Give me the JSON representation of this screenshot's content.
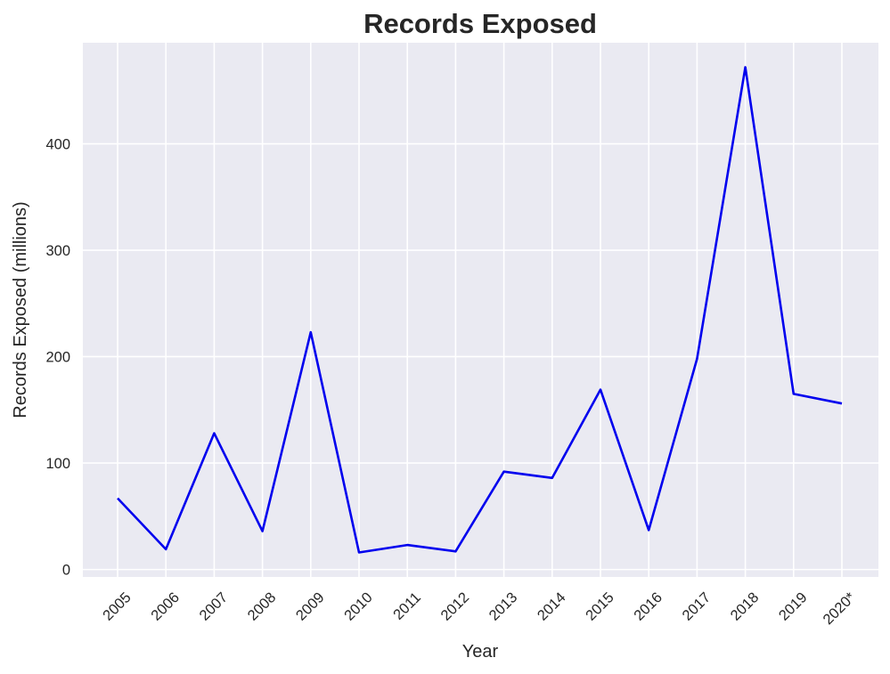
{
  "chart_data": {
    "type": "line",
    "title": "Records Exposed",
    "xlabel": "Year",
    "ylabel": "Records Exposed (millions)",
    "categories": [
      "2005",
      "2006",
      "2007",
      "2008",
      "2009",
      "2010",
      "2011",
      "2012",
      "2013",
      "2014",
      "2015",
      "2016",
      "2017",
      "2018",
      "2019",
      "2020*"
    ],
    "series": [
      {
        "values": [
          67,
          19,
          128,
          36,
          223,
          16,
          23,
          17,
          92,
          86,
          169,
          37,
          198,
          472,
          165,
          156
        ]
      }
    ],
    "yticks": [
      0,
      100,
      200,
      300,
      400
    ],
    "ylim": [
      -7,
      495
    ],
    "grid": true,
    "legend": "none",
    "colors": {
      "line": "#0000ee",
      "plot_background": "#eaeaf2",
      "grid": "#ffffff"
    }
  }
}
